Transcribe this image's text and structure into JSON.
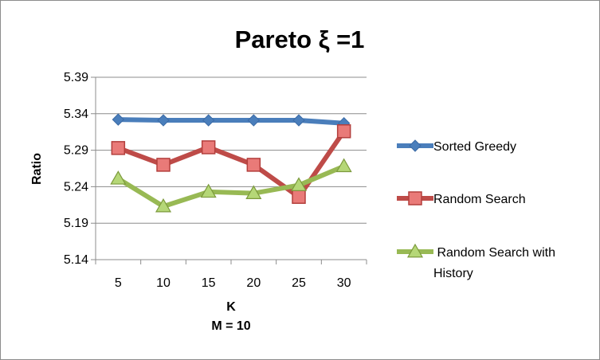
{
  "chart_data": {
    "type": "line",
    "title": "Pareto ξ =1",
    "xlabel": "K",
    "xlabel2": "M = 10",
    "ylabel": "Ratio",
    "categories": [
      "5",
      "10",
      "15",
      "20",
      "25",
      "30"
    ],
    "yticks": [
      "5.14",
      "5.19",
      "5.24",
      "5.29",
      "5.34",
      "5.39"
    ],
    "ylim": [
      5.14,
      5.39
    ],
    "grid": "horizontal",
    "legend_position": "right",
    "series": [
      {
        "name": "Sorted Greedy",
        "name_lines": [
          "Sorted Greedy"
        ],
        "values": [
          5.332,
          5.331,
          5.331,
          5.331,
          5.331,
          5.327
        ],
        "color": "#4a7ebb",
        "marker": "diamond"
      },
      {
        "name": "Random Search",
        "name_lines": [
          "Random Search"
        ],
        "values": [
          5.293,
          5.27,
          5.294,
          5.27,
          5.226,
          5.316
        ],
        "color": "#be4b48",
        "marker": "square"
      },
      {
        "name": "Random Search with History",
        "name_lines": [
          " Random Search with",
          "History"
        ],
        "values": [
          5.251,
          5.213,
          5.233,
          5.231,
          5.242,
          5.268
        ],
        "color": "#98b954",
        "marker": "triangle"
      }
    ]
  }
}
